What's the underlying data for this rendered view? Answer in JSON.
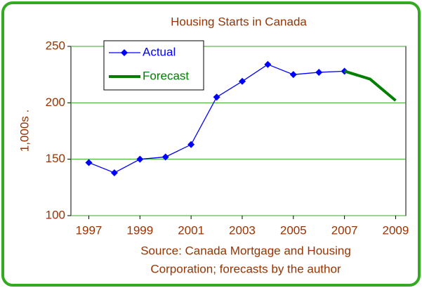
{
  "chart_data": {
    "type": "line",
    "title": "Housing Starts in Canada",
    "y_label": "1,000s .",
    "source": [
      "Source: Canada Mortgage and Housing",
      "Corporation; forecasts by the author"
    ],
    "series": [
      {
        "name": "Actual",
        "color": "#0000ff",
        "marker": "diamond",
        "x": [
          1997,
          1998,
          1999,
          2000,
          2001,
          2002,
          2003,
          2004,
          2005,
          2006,
          2007
        ],
        "values": [
          147,
          138,
          150,
          152,
          163,
          205,
          219,
          234,
          225,
          227,
          228
        ]
      },
      {
        "name": "Forecast",
        "color": "#008000",
        "x": [
          2007,
          2008,
          2009
        ],
        "values": [
          228,
          221,
          202
        ]
      }
    ],
    "xlim": [
      1996.3,
      2009.4
    ],
    "xticks": [
      1997,
      1999,
      2001,
      2003,
      2005,
      2007,
      2009
    ],
    "ylim": [
      100,
      250
    ],
    "yticks": [
      100,
      150,
      200,
      250
    ],
    "grid": true,
    "legend": "upper left"
  }
}
